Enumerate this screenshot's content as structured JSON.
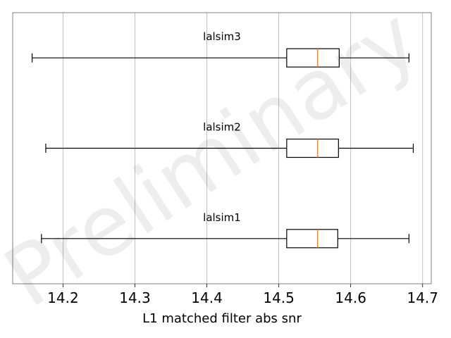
{
  "chart_data": {
    "type": "boxplot",
    "orientation": "horizontal",
    "xlabel": "L1 matched filter abs snr",
    "xlim": [
      14.13,
      14.712
    ],
    "xticks": [
      "14.2",
      "14.3",
      "14.4",
      "14.5",
      "14.6",
      "14.7"
    ],
    "grid": "vertical",
    "watermark": "Preliminary",
    "series": [
      {
        "name": "lalsim1",
        "whisker_low": 14.17,
        "q1": 14.511,
        "median": 14.554,
        "q3": 14.582,
        "whisker_high": 14.681
      },
      {
        "name": "lalsim2",
        "whisker_low": 14.176,
        "q1": 14.511,
        "median": 14.554,
        "q3": 14.583,
        "whisker_high": 14.687
      },
      {
        "name": "lalsim3",
        "whisker_low": 14.157,
        "q1": 14.511,
        "median": 14.554,
        "q3": 14.584,
        "whisker_high": 14.681
      }
    ],
    "colors": {
      "box": "#000000",
      "median": "#ff7f0e",
      "grid": "#b0b0b0",
      "frame": "#808080"
    }
  }
}
